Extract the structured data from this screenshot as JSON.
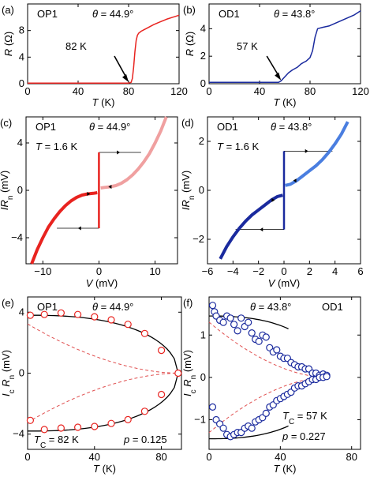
{
  "panels": [
    {
      "id": "a",
      "letter": "(a)",
      "sample": "OP1",
      "theta": "θ = 44.9°",
      "xlabel_main": "T",
      "xlabel_unit": " (K)",
      "ylabel_main": "R",
      "ylabel_unit": " (Ω)",
      "xticks": [
        0,
        40,
        80,
        120
      ],
      "yticks": [
        0,
        4,
        8
      ],
      "annotation": "82 K",
      "chart_data": {
        "type": "line",
        "xlim": [
          0,
          120
        ],
        "ylim": [
          0,
          12
        ],
        "color": "#e8231f",
        "x": [
          0,
          60,
          80,
          82,
          83,
          84,
          85,
          86,
          87,
          88,
          89,
          90,
          92,
          95,
          100,
          105,
          110,
          115,
          120
        ],
        "y": [
          0.1,
          0.1,
          0.1,
          0.2,
          0.8,
          2.5,
          4.8,
          6.5,
          7.3,
          7.6,
          7.75,
          7.9,
          8.1,
          8.4,
          8.9,
          9.3,
          9.7,
          10.0,
          10.3
        ]
      }
    },
    {
      "id": "b",
      "letter": "(b)",
      "sample": "OD1",
      "theta": "θ = 43.8°",
      "xlabel_main": "T",
      "xlabel_unit": " (K)",
      "ylabel_main": "R",
      "ylabel_unit": " (Ω)",
      "xticks": [
        0,
        40,
        80,
        120
      ],
      "yticks": [
        0,
        2,
        4
      ],
      "annotation": "57 K",
      "chart_data": {
        "type": "line",
        "xlim": [
          0,
          120
        ],
        "ylim": [
          0,
          5.8
        ],
        "color": "#1a2a9e",
        "x": [
          0,
          40,
          55,
          57,
          60,
          63,
          66,
          70,
          73,
          75,
          77,
          80,
          82,
          84,
          86,
          90,
          95,
          100,
          105,
          110,
          115,
          120
        ],
        "y": [
          0.1,
          0.1,
          0.1,
          0.2,
          0.5,
          0.8,
          1.0,
          1.2,
          1.45,
          1.55,
          1.65,
          1.9,
          2.4,
          3.4,
          4.0,
          4.1,
          4.2,
          4.4,
          4.6,
          4.8,
          5.0,
          5.3
        ]
      }
    },
    {
      "id": "c",
      "letter": "(c)",
      "sample": "OP1",
      "theta": "θ = 44.9°",
      "temp": "T = 1.6 K",
      "xlabel_main": "V",
      "xlabel_unit": " (mV)",
      "ylabel_main": "IR",
      "ylabel_sub": "n",
      "ylabel_unit": " (mV)",
      "xticks": [
        -10,
        0,
        10
      ],
      "yticks": [
        -4,
        0,
        4
      ],
      "chart_data": {
        "type": "line",
        "xlim": [
          -13,
          14
        ],
        "ylim": [
          -6.2,
          6.2
        ],
        "series": [
          {
            "color": "#e8231f",
            "x": [
              -12,
              -11,
              -10,
              -9,
              -8,
              -7,
              -6,
              -5,
              -4,
              -3,
              -2,
              -1,
              -0.3
            ],
            "y": [
              -6.2,
              -5.0,
              -4.0,
              -3.1,
              -2.4,
              -1.8,
              -1.3,
              -0.9,
              -0.6,
              -0.4,
              -0.3,
              -0.25,
              -0.2
            ]
          },
          {
            "color": "#f0a0a0",
            "x": [
              0.3,
              1,
              2,
              3,
              4,
              5,
              6,
              7,
              8,
              9,
              10,
              11,
              12
            ],
            "y": [
              0.2,
              0.25,
              0.3,
              0.4,
              0.6,
              0.9,
              1.3,
              1.8,
              2.4,
              3.1,
              4.0,
              5.0,
              6.2
            ]
          },
          {
            "color": "#e8231f",
            "x": [
              0,
              0
            ],
            "y": [
              -3.2,
              3.2
            ]
          }
        ],
        "hysteresis": [
          {
            "x": [
              0,
              7.5
            ],
            "y": [
              3.2,
              3.2
            ]
          },
          {
            "x": [
              -7.5,
              0
            ],
            "y": [
              -3.2,
              -3.2
            ]
          }
        ]
      }
    },
    {
      "id": "d",
      "letter": "(d)",
      "sample": "OD1",
      "theta": "θ = 43.8°",
      "temp": "T = 1.6 K",
      "xlabel_main": "V",
      "xlabel_unit": " (mV)",
      "ylabel_main": "IR",
      "ylabel_sub": "n",
      "ylabel_unit": " (mV)",
      "xticks": [
        -6,
        -4,
        -2,
        0,
        2,
        4,
        6
      ],
      "yticks": [
        -2,
        0,
        2
      ],
      "chart_data": {
        "type": "line",
        "xlim": [
          -6,
          6
        ],
        "ylim": [
          -3,
          3
        ],
        "series": [
          {
            "color": "#1a2a9e",
            "x": [
              -5,
              -4.5,
              -4,
              -3.5,
              -3,
              -2.5,
              -2,
              -1.5,
              -1,
              -0.5,
              -0.1
            ],
            "y": [
              -2.8,
              -2.3,
              -1.9,
              -1.55,
              -1.25,
              -1.0,
              -0.8,
              -0.6,
              -0.4,
              -0.25,
              -0.2
            ]
          },
          {
            "color": "#4a7ee0",
            "x": [
              0.1,
              0.5,
              1,
              1.5,
              2,
              2.5,
              3,
              3.5,
              4,
              4.5,
              5
            ],
            "y": [
              0.2,
              0.25,
              0.4,
              0.6,
              0.8,
              1.0,
              1.25,
              1.55,
              1.9,
              2.3,
              2.8
            ]
          },
          {
            "color": "#1a2a9e",
            "x": [
              0,
              0
            ],
            "y": [
              -1.6,
              1.6
            ]
          }
        ],
        "hysteresis": [
          {
            "x": [
              0,
              3.8
            ],
            "y": [
              1.6,
              1.6
            ]
          },
          {
            "x": [
              -3.8,
              0
            ],
            "y": [
              -1.6,
              -1.6
            ]
          }
        ]
      }
    },
    {
      "id": "e",
      "letter": "(e)",
      "sample": "OP1",
      "theta": "θ = 44.9°",
      "tc_main": "T",
      "tc_sub": "C",
      "tc_value": " = 82 K",
      "p_label": "p",
      "p_value": " = 0.125",
      "xlabel_main": "T",
      "xlabel_unit": " (K)",
      "ylabel_main": "I",
      "ylabel_sub": "c",
      "ylabel_main2": "R",
      "ylabel_sub2": "n",
      "ylabel_unit": " (mV)",
      "xticks": [
        0,
        40,
        80
      ],
      "yticks": [
        -4,
        0,
        4
      ],
      "chart_data": {
        "type": "scatter",
        "xlim": [
          0,
          92
        ],
        "ylim": [
          -5,
          5
        ],
        "marker_color": "#e8231f",
        "points": {
          "x": [
            1.6,
            10,
            20,
            30,
            40,
            50,
            60,
            70,
            80,
            90,
            1.6,
            10,
            20,
            30,
            40,
            50,
            60,
            70,
            80
          ],
          "y": [
            3.8,
            3.85,
            3.95,
            3.85,
            3.7,
            3.5,
            3.2,
            2.6,
            1.5,
            0,
            -3.1,
            -3.7,
            -3.6,
            -3.55,
            -3.5,
            -3.3,
            -3.05,
            -2.5,
            -1.4
          ]
        },
        "fit_color": "#000000",
        "dashed_color": "#e05050"
      }
    },
    {
      "id": "f",
      "letter": "(f)",
      "sample": "OD1",
      "theta": "θ = 43.8°",
      "tc_main": "T",
      "tc_sub": "C",
      "tc_value": " = 57 K",
      "p_label": "p",
      "p_value": " = 0.227",
      "xlabel_main": "T",
      "xlabel_unit": " (K)",
      "ylabel_main": "I",
      "ylabel_sub": "c",
      "ylabel_main2": "R",
      "ylabel_sub2": "n",
      "ylabel_unit": " (mV)",
      "xticks": [
        0,
        40,
        80
      ],
      "yticks": [
        -1,
        0,
        1
      ],
      "chart_data": {
        "type": "scatter",
        "xlim": [
          0,
          85
        ],
        "ylim": [
          -1.7,
          1.9
        ],
        "marker_color": "#1a2a9e",
        "points": {
          "x": [
            2,
            3,
            4,
            6,
            8,
            10,
            12,
            14,
            16,
            18,
            20,
            22,
            24,
            26,
            28,
            30,
            32,
            34,
            36,
            38,
            40,
            42,
            44,
            46,
            48,
            50,
            52,
            54,
            56,
            58,
            60,
            62,
            64,
            66,
            2,
            4,
            6,
            8,
            10,
            12,
            14,
            16,
            18,
            20,
            22,
            24,
            26,
            28,
            30,
            32,
            34,
            36,
            38,
            40,
            42,
            44,
            46,
            48,
            50,
            52,
            54,
            56,
            58,
            60,
            62,
            64,
            66
          ],
          "y": [
            1.7,
            1.55,
            1.45,
            1.35,
            1.3,
            1.45,
            1.4,
            1.25,
            1.1,
            1.4,
            1.2,
            1.3,
            1.05,
            0.9,
            0.85,
            1.0,
            0.95,
            0.7,
            0.6,
            0.65,
            0.5,
            0.45,
            0.45,
            0.35,
            0.3,
            0.25,
            0.25,
            0.2,
            0.2,
            0.1,
            0.1,
            0.05,
            0.08,
            0.05,
            -0.7,
            -1.0,
            -1.1,
            -1.2,
            -1.35,
            -1.4,
            -1.35,
            -1.3,
            -1.3,
            -1.2,
            -1.15,
            -1.2,
            -1.05,
            -1.0,
            -0.95,
            -0.85,
            -0.7,
            -0.65,
            -0.55,
            -0.5,
            -0.45,
            -0.4,
            -0.35,
            -0.25,
            -0.2,
            -0.2,
            -0.15,
            -0.1,
            -0.05,
            -0.05,
            0.0,
            0.0,
            0.02
          ]
        },
        "fit_color": "#000000",
        "dashed_color": "#e05050"
      }
    }
  ]
}
